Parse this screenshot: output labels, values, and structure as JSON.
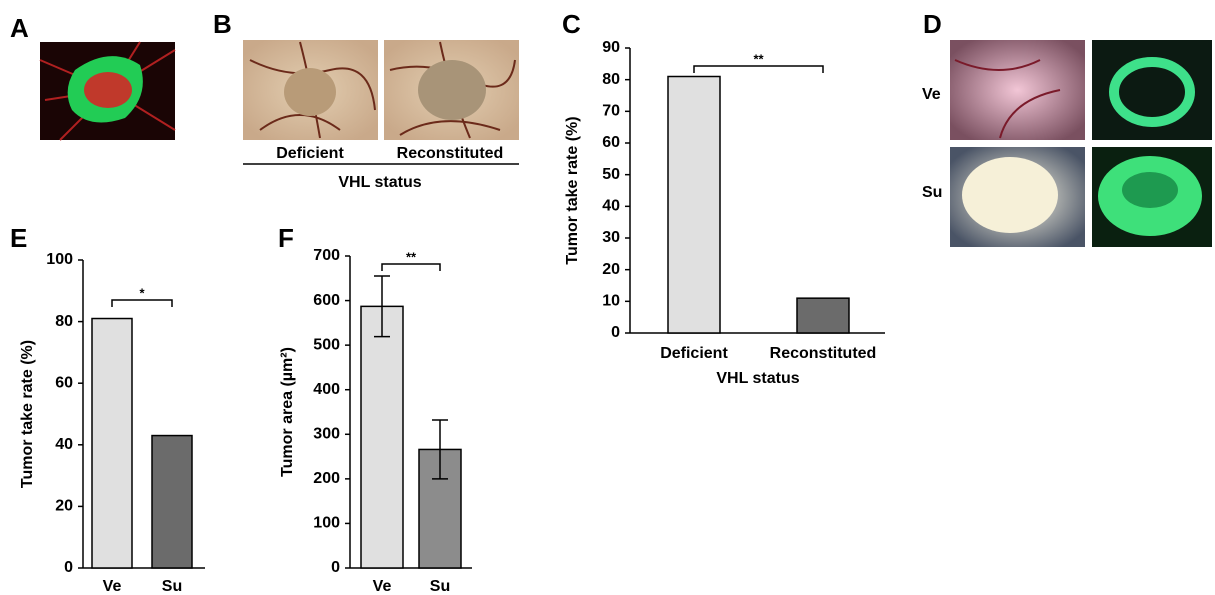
{
  "panel_labels": [
    "A",
    "B",
    "C",
    "D",
    "E",
    "F"
  ],
  "panel_b": {
    "labels": [
      "Deficient",
      "Reconstituted"
    ],
    "xlabel": "VHL status"
  },
  "panel_d": {
    "rows": [
      "Ve",
      "Su"
    ]
  },
  "chart_data": [
    {
      "type": "bar",
      "ylabel": "Tumor take rate (%)",
      "xlabel": "VHL status",
      "categories": [
        "Deficient",
        "Reconstituted"
      ],
      "values": [
        81,
        11
      ],
      "colors": [
        "#e0e0e0",
        "#6b6b6b"
      ],
      "ylim": [
        0,
        90
      ],
      "yticks": [
        0,
        10,
        20,
        30,
        40,
        50,
        60,
        70,
        80,
        90
      ],
      "significance": "**"
    },
    {
      "type": "bar",
      "ylabel": "Tumor take rate (%)",
      "categories": [
        "Ve",
        "Su"
      ],
      "values": [
        81,
        43
      ],
      "colors": [
        "#e0e0e0",
        "#6b6b6b"
      ],
      "ylim": [
        0,
        100
      ],
      "yticks": [
        0,
        20,
        40,
        60,
        80,
        100
      ],
      "significance": "*"
    },
    {
      "type": "bar",
      "ylabel": "Tumor area (µm²)",
      "categories": [
        "Ve",
        "Su"
      ],
      "values": [
        587,
        266
      ],
      "errors": [
        68,
        66
      ],
      "colors": [
        "#e0e0e0",
        "#8c8c8c"
      ],
      "ylim": [
        0,
        700
      ],
      "yticks": [
        0,
        100,
        200,
        300,
        400,
        500,
        600,
        700
      ],
      "significance": "**"
    }
  ]
}
